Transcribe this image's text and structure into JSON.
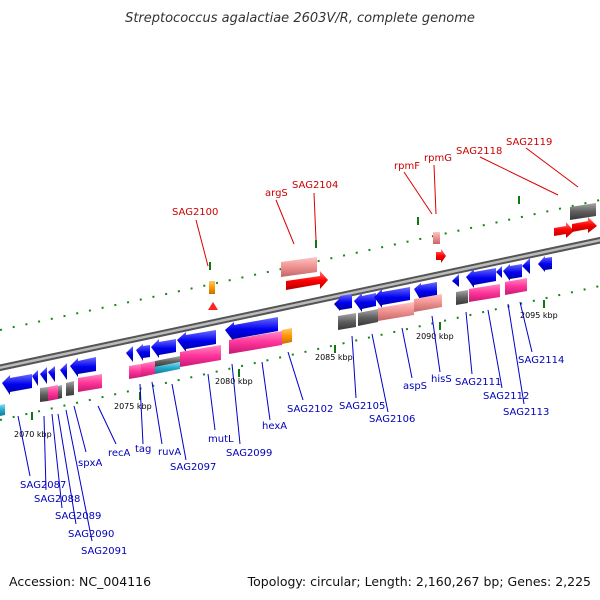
{
  "title": "Streptococcus agalactiae 2603V/R, complete genome",
  "footer": {
    "accession": "Accession: NC_004116",
    "topology": "Topology: circular; Length: 2,160,267 bp; Genes: 2,225"
  },
  "ticks": [
    "2070 kbp",
    "2075 kbp",
    "2080 kbp",
    "2085 kbp",
    "2090 kbp",
    "2095 kbp"
  ],
  "labels_lower": [
    "SAG2087",
    "SAG2088",
    "SAG2089",
    "SAG2090",
    "SAG2091",
    "spxA",
    "recA",
    "tag",
    "ruvA",
    "SAG2097",
    "mutL",
    "SAG2099",
    "hexA",
    "SAG2102",
    "SAG2105",
    "SAG2106",
    "aspS",
    "hisS",
    "SAG2111",
    "SAG2112",
    "SAG2113",
    "SAG2114"
  ],
  "labels_upper": [
    "SAG2100",
    "argS",
    "SAG2104",
    "rpmF",
    "rpmG",
    "SAG2118",
    "SAG2119"
  ],
  "colors": {
    "forward_cds": "#ff0000",
    "reverse_cds": "#0000ee",
    "pink": "#ff3399",
    "light_pink": "#f09090",
    "orange": "#ff9900",
    "gray": "#606060",
    "cyan": "#22aacc",
    "backbone": "#888888"
  }
}
